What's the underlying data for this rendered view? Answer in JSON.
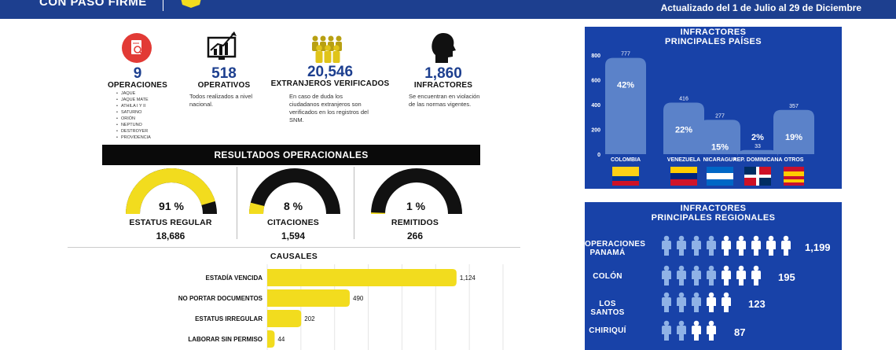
{
  "header": {
    "brand": "CON PASO FIRME",
    "updated": "Actualizado del 1 de Julio al 29 de Diciembre"
  },
  "stats": [
    {
      "value": "9",
      "label": "OPERACIONES",
      "icon": "document-search-icon"
    },
    {
      "value": "518",
      "label": "OPERATIVOS",
      "icon": "chart-monitor-icon",
      "desc": "Todos realizados a nivel nacional."
    },
    {
      "value": "20,546",
      "label": "EXTRANJEROS VERIFICADOS",
      "icon": "crowd-icon",
      "desc": "En caso de duda los ciudadanos extranjeros son verificados en los registros del SNM."
    },
    {
      "value": "1,860",
      "label": "INFRACTORES",
      "icon": "head-silhouette-icon",
      "desc": "Se encuentran en violación de las normas vigentes."
    }
  ],
  "operations": [
    "JAQUE",
    "JAQUE MATE",
    "ATHILA I Y II",
    "SATURNO",
    "ORIÓN",
    "NEPTUNO",
    "DESTROYER",
    "PROVIDENCIA"
  ],
  "results": {
    "title": "RESULTADOS OPERACIONALES",
    "gauges": [
      {
        "pct_label": "91 %",
        "fraction": 0.91,
        "label": "ESTATUS REGULAR",
        "value": "18,686"
      },
      {
        "pct_label": "8 %",
        "fraction": 0.08,
        "label": "CITACIONES",
        "value": "1,594"
      },
      {
        "pct_label": "1 %",
        "fraction": 0.01,
        "label": "REMITIDOS",
        "value": "266"
      }
    ]
  },
  "chart_data": [
    {
      "type": "bar",
      "orientation": "horizontal",
      "title": "CAUSALES",
      "categories": [
        "ESTADÍA VENCIDA",
        "NO PORTAR DOCUMENTOS",
        "ESTATUS IRREGULAR",
        "LABORAR SIN PERMISO"
      ],
      "values": [
        1124,
        490,
        202,
        44
      ],
      "value_labels": [
        "1,124",
        "490",
        "202",
        "44"
      ],
      "xlim": [
        0,
        1400
      ]
    },
    {
      "type": "bar",
      "title": "INFRACTORES PRINCIPALES PAÍSES",
      "categories": [
        "COLOMBIA",
        "VENEZUELA",
        "NICARAGUA",
        "REP. DOMINICANA",
        "OTROS"
      ],
      "values": [
        777,
        416,
        277,
        33,
        357
      ],
      "percent_labels": [
        "42%",
        "22%",
        "15%",
        "2%",
        "19%"
      ],
      "yticks": [
        0,
        200,
        400,
        600,
        800
      ],
      "ylim": [
        0,
        800
      ],
      "flags": [
        "colombia-flag-icon",
        "venezuela-flag-icon",
        "nicaragua-flag-icon",
        "dominican-republic-flag-icon",
        "others-flag-icon"
      ]
    }
  ],
  "regional": {
    "title_line1": "INFRACTORES",
    "title_line2": "PRINCIPALES REGIONALES",
    "items": [
      {
        "label": "OPERACIONES PANAMÁ",
        "value": "1,199",
        "people": 9,
        "highlight": 4
      },
      {
        "label": "COLÓN",
        "value": "195",
        "people": 7,
        "highlight": 4
      },
      {
        "label": "LOS SANTOS",
        "value": "123",
        "people": 5,
        "highlight": 3
      },
      {
        "label": "CHIRIQUÍ",
        "value": "87",
        "people": 4,
        "highlight": 2
      }
    ]
  },
  "colors": {
    "navy": "#1d3f8f",
    "panel_blue": "#1842a8",
    "bar_blue": "#5b82c9",
    "yellow": "#f2dc1e",
    "black": "#111111",
    "red": "#e23a35",
    "person_light": "#8fb2e6",
    "person_white": "#ffffff"
  }
}
